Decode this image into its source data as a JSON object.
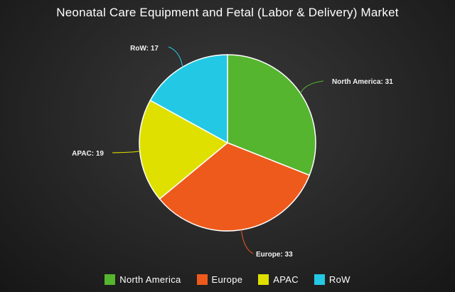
{
  "chart_data": {
    "type": "pie",
    "title": "Neonatal Care Equipment and Fetal (Labor & Delivery) Market",
    "categories": [
      "North America",
      "Europe",
      "APAC",
      "RoW"
    ],
    "values": [
      31,
      33,
      19,
      17
    ],
    "colors": [
      "#55b52f",
      "#ee5a1c",
      "#dfe000",
      "#23c9e4"
    ],
    "label_format": "{name}: {value}",
    "legend": "bottom"
  }
}
